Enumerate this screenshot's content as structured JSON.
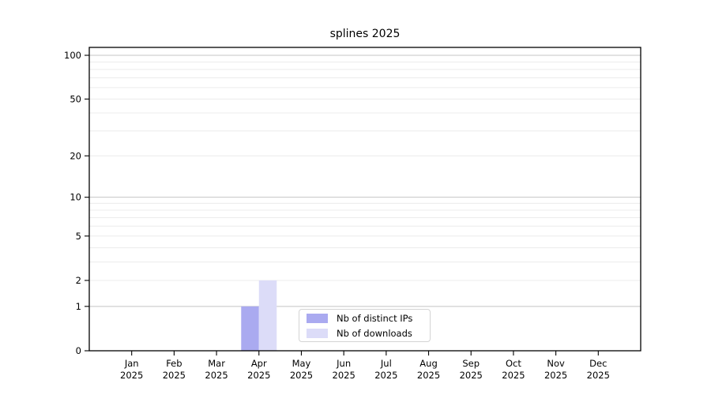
{
  "title": "splines 2025",
  "chart_data": {
    "type": "bar",
    "title": "splines 2025",
    "categories": [
      "Jan 2025",
      "Feb 2025",
      "Mar 2025",
      "Apr 2025",
      "May 2025",
      "Jun 2025",
      "Jul 2025",
      "Aug 2025",
      "Sep 2025",
      "Oct 2025",
      "Nov 2025",
      "Dec 2025"
    ],
    "series": [
      {
        "name": "Nb of distinct IPs",
        "color": "#aaaaf0",
        "values": [
          0,
          0,
          0,
          1,
          0,
          0,
          0,
          0,
          0,
          0,
          0,
          0
        ]
      },
      {
        "name": "Nb of downloads",
        "color": "#dcdcf8",
        "values": [
          0,
          0,
          0,
          2,
          0,
          0,
          0,
          0,
          0,
          0,
          0,
          0
        ]
      }
    ],
    "y_scale": "log10(1+y)",
    "y_ticks": [
      0,
      1,
      2,
      5,
      10,
      20,
      50,
      100
    ],
    "y_minor_gridlines": [
      2,
      3,
      4,
      5,
      6,
      7,
      8,
      9,
      20,
      30,
      40,
      50,
      60,
      70,
      80,
      90
    ],
    "y_major_gridlines": [
      1,
      10,
      100
    ],
    "ylim": [
      0,
      113
    ],
    "grid": true,
    "legend_position": "bottom-center",
    "colors": {
      "axis": "#000000",
      "text": "#000000",
      "grid_major": "#c4c4c4",
      "grid_minor": "#ececec",
      "legend_border": "#d4d4d4",
      "background": "#ffffff"
    }
  }
}
